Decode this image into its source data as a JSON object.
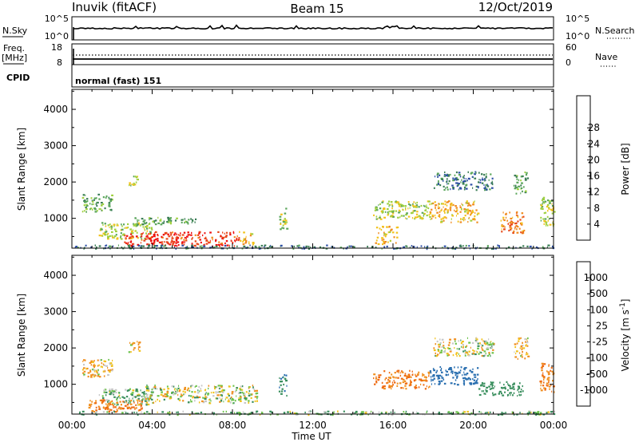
{
  "header": {
    "title": "Inuvik (fitACF)",
    "beam": "Beam 15",
    "date": "12/Oct/2019"
  },
  "panels": {
    "noise": {
      "left_label": "N.Sky",
      "left_ticks": [
        "10^5",
        "10^0"
      ],
      "right_label": "N.Search",
      "right_ticks": [
        "10^5",
        "10^0"
      ]
    },
    "freq": {
      "left_label_1": "Freq.",
      "left_label_2": "[MHz]",
      "left_ticks": [
        "18",
        "8"
      ],
      "right_label": "Nave",
      "right_ticks": [
        "60",
        "0"
      ]
    },
    "cpid": {
      "label": "CPID",
      "value": "normal (fast) 151"
    }
  },
  "chart_data": [
    {
      "type": "heatmap",
      "parameter": "power",
      "xlabel": "Time UT",
      "ylabel": "Slant Range [km]",
      "xlim": [
        0,
        24
      ],
      "ylim": [
        180,
        4550
      ],
      "x_tick_labels": [
        "00:00",
        "04:00",
        "08:00",
        "12:00",
        "16:00",
        "20:00",
        "00:00"
      ],
      "y_tick_labels": [
        "1000",
        "2000",
        "3000",
        "4000"
      ],
      "colorbar": {
        "label": "Power [dB]",
        "ticks": [
          "4",
          "8",
          "12",
          "16",
          "20",
          "24",
          "28"
        ],
        "colors": [
          "#1226e8",
          "#2d4fa6",
          "#3a7d55",
          "#5aa65a",
          "#9fd03f",
          "#f2c21b",
          "#f08a1e",
          "#e8471a",
          "#ee1010"
        ]
      },
      "regions": [
        {
          "t0": 1.3,
          "t1": 4.0,
          "r0": 450,
          "r1": 900,
          "value": 16
        },
        {
          "t0": 2.6,
          "t1": 8.3,
          "r0": 250,
          "r1": 650,
          "value": 28
        },
        {
          "t0": 8.3,
          "t1": 9.0,
          "r0": 300,
          "r1": 650,
          "value": 20
        },
        {
          "t0": 3.0,
          "t1": 6.2,
          "r0": 850,
          "r1": 1050,
          "value": 12
        },
        {
          "t0": 0.5,
          "t1": 2.0,
          "r0": 1200,
          "r1": 1700,
          "value": 12
        },
        {
          "t0": 2.8,
          "t1": 3.4,
          "r0": 1900,
          "r1": 2200,
          "value": 16
        },
        {
          "t0": 10.3,
          "t1": 10.7,
          "r0": 700,
          "r1": 1300,
          "value": 16
        },
        {
          "t0": 15.0,
          "t1": 17.8,
          "r0": 1000,
          "r1": 1500,
          "value": 16
        },
        {
          "t0": 17.8,
          "t1": 20.2,
          "r0": 900,
          "r1": 1500,
          "value": 20
        },
        {
          "t0": 18.0,
          "t1": 21.0,
          "r0": 1800,
          "r1": 2300,
          "value": 8
        },
        {
          "t0": 21.3,
          "t1": 22.5,
          "r0": 600,
          "r1": 1200,
          "value": 24
        },
        {
          "t0": 22.0,
          "t1": 22.7,
          "r0": 1700,
          "r1": 2300,
          "value": 12
        },
        {
          "t0": 23.3,
          "t1": 24.0,
          "r0": 800,
          "r1": 1600,
          "value": 16
        },
        {
          "t0": 15.1,
          "t1": 16.2,
          "r0": 300,
          "r1": 800,
          "value": 20
        },
        {
          "t0": 0.0,
          "t1": 24.0,
          "r0": 180,
          "r1": 280,
          "value": 8
        }
      ]
    },
    {
      "type": "heatmap",
      "parameter": "velocity",
      "xlabel": "Time UT",
      "ylabel": "Slant Range [km]",
      "xlim": [
        0,
        24
      ],
      "ylim": [
        180,
        4550
      ],
      "x_tick_labels": [
        "00:00",
        "04:00",
        "08:00",
        "12:00",
        "16:00",
        "20:00",
        "00:00"
      ],
      "y_tick_labels": [
        "1000",
        "2000",
        "3000",
        "4000"
      ],
      "colorbar": {
        "label": "Velocity [m s^-1]",
        "ticks": [
          "1000",
          "500",
          "100",
          "25",
          "-25",
          "-100",
          "-500",
          "-1000"
        ],
        "colors": [
          "#1d3fbf",
          "#2a6fb0",
          "#3a8f5e",
          "#6cc24a",
          "#c8c8c8",
          "#f2c21b",
          "#f09020",
          "#ee6a12",
          "#e61414"
        ]
      },
      "regions": [
        {
          "t0": 1.3,
          "t1": 4.0,
          "r0": 450,
          "r1": 900,
          "value": 100
        },
        {
          "t0": 3.5,
          "t1": 9.2,
          "r0": 500,
          "r1": 1000,
          "value": 0
        },
        {
          "t0": 0.8,
          "t1": 3.5,
          "r0": 250,
          "r1": 600,
          "value": -500
        },
        {
          "t0": 0.5,
          "t1": 2.0,
          "r0": 1200,
          "r1": 1700,
          "value": -100
        },
        {
          "t0": 2.8,
          "t1": 3.4,
          "r0": 1900,
          "r1": 2200,
          "value": -100
        },
        {
          "t0": 10.3,
          "t1": 10.7,
          "r0": 700,
          "r1": 1300,
          "value": 500
        },
        {
          "t0": 15.0,
          "t1": 17.8,
          "r0": 900,
          "r1": 1400,
          "value": -500
        },
        {
          "t0": 17.8,
          "t1": 20.2,
          "r0": 1000,
          "r1": 1500,
          "value": 700
        },
        {
          "t0": 18.0,
          "t1": 21.0,
          "r0": 1800,
          "r1": 2300,
          "value": 0
        },
        {
          "t0": 20.2,
          "t1": 22.5,
          "r0": 700,
          "r1": 1100,
          "value": 300
        },
        {
          "t0": 22.0,
          "t1": 22.7,
          "r0": 1700,
          "r1": 2300,
          "value": -100
        },
        {
          "t0": 23.3,
          "t1": 24.0,
          "r0": 800,
          "r1": 1600,
          "value": -500
        },
        {
          "t0": 0.0,
          "t1": 24.0,
          "r0": 180,
          "r1": 280,
          "value": 100
        }
      ]
    }
  ]
}
